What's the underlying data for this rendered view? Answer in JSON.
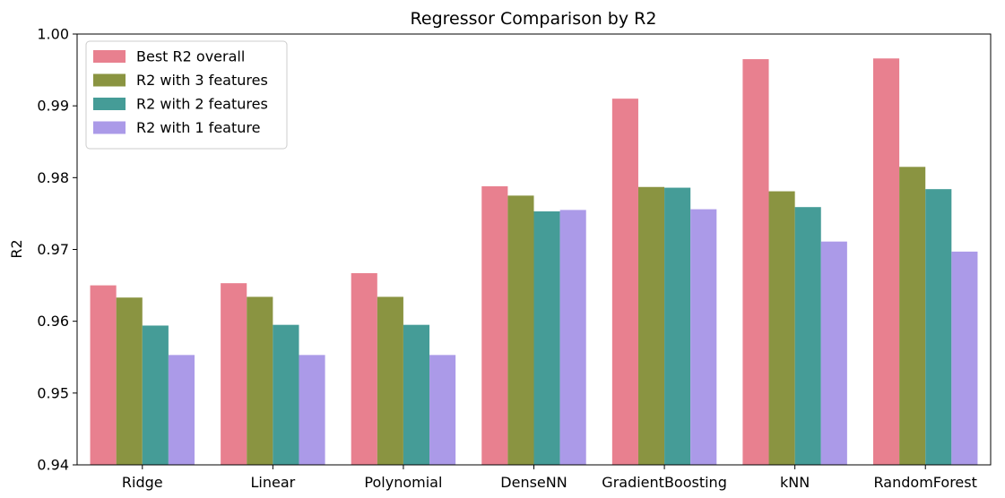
{
  "chart_data": {
    "type": "bar",
    "title": "Regressor Comparison by R2",
    "xlabel": "",
    "ylabel": "R2",
    "ylim": [
      0.94,
      1.0
    ],
    "yticks": [
      "0.94",
      "0.95",
      "0.96",
      "0.97",
      "0.98",
      "0.99",
      "1.00"
    ],
    "categories": [
      "Ridge",
      "Linear",
      "Polynomial",
      "DenseNN",
      "GradientBoosting",
      "kNN",
      "RandomForest"
    ],
    "legend_position": "top-left",
    "grid": false,
    "series": [
      {
        "name": "Best R2 overall",
        "color": "#e8808f",
        "values": [
          0.965,
          0.9653,
          0.9667,
          0.9788,
          0.991,
          0.9965,
          0.9966
        ]
      },
      {
        "name": "R2 with 3 features",
        "color": "#8a9441",
        "values": [
          0.9633,
          0.9634,
          0.9634,
          0.9775,
          0.9787,
          0.9781,
          0.9815
        ]
      },
      {
        "name": "R2 with 2 features",
        "color": "#459c97",
        "values": [
          0.9594,
          0.9595,
          0.9595,
          0.9753,
          0.9786,
          0.9759,
          0.9784
        ]
      },
      {
        "name": "R2 with 1 feature",
        "color": "#ab9ae8",
        "values": [
          0.9553,
          0.9553,
          0.9553,
          0.9755,
          0.9756,
          0.9711,
          0.9697
        ]
      }
    ]
  }
}
